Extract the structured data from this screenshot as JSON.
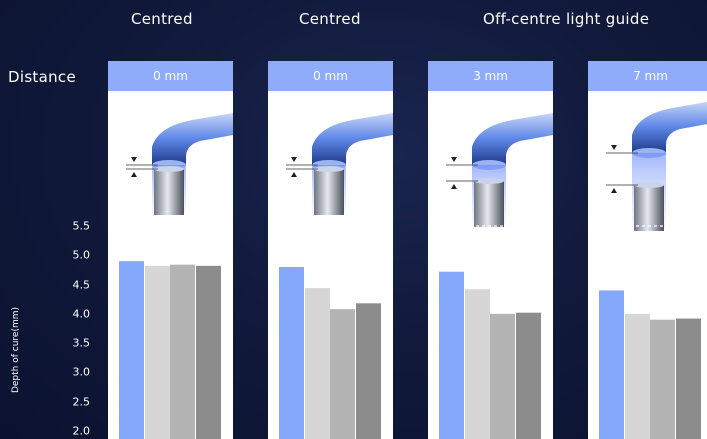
{
  "headers": {
    "col1": "Centred",
    "col2": "Centred",
    "col34": "Off-centre light guide"
  },
  "row_label": "Distance",
  "distances": [
    "0 mm",
    "0 mm",
    "3 mm",
    "7 mm"
  ],
  "colors": {
    "background": "#111a3c",
    "distance_header": "#8eacf9",
    "bar_blue": "#84a8fb",
    "bar_light_gray": "#d6d6d6",
    "bar_mid_gray": "#b3b3b3",
    "bar_dark_gray": "#8c8c8c"
  },
  "chart_data": {
    "type": "bar",
    "ylabel": "Depth of cure(mm)",
    "ylim": [
      2.0,
      5.5
    ],
    "yticks": [
      "5.5",
      "5.0",
      "4.5",
      "4.0",
      "3.5",
      "3.0",
      "2.5",
      "2.0"
    ],
    "gridlines": "dashed, white",
    "groups": [
      {
        "distance": "0 mm",
        "values": [
          4.9,
          4.82,
          4.84,
          4.82
        ]
      },
      {
        "distance": "0 mm",
        "values": [
          4.8,
          4.44,
          4.08,
          4.18
        ]
      },
      {
        "distance": "3 mm",
        "values": [
          4.72,
          4.42,
          4.0,
          4.02
        ]
      },
      {
        "distance": "7 mm",
        "values": [
          4.4,
          4.0,
          3.9,
          3.92
        ]
      }
    ]
  }
}
